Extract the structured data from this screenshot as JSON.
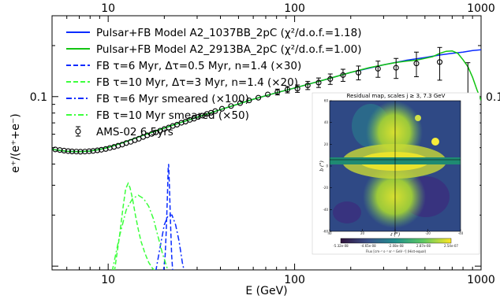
{
  "chart_data": {
    "type": "line",
    "xlabel": "E (GeV)",
    "ylabel": "e⁺/(e⁺+e⁻)",
    "xscale": "log",
    "yscale": "log",
    "xlim": [
      5,
      1000
    ],
    "ylim": [
      0.0095,
      0.3
    ],
    "x_tick_labels": [
      {
        "value": 10,
        "label": "10"
      },
      {
        "value": 100,
        "label": "100"
      },
      {
        "value": 1000,
        "label": "1000"
      }
    ],
    "y_tick_labels": [
      {
        "value": 0.1,
        "label": "0.1"
      }
    ],
    "grid": false,
    "legend_position": "top-left",
    "series": [
      {
        "name": "Pulsar+FB Model A2_1037BB_2pC (χ²/d.o.f.=1.18)",
        "color": "#0a2bff",
        "style": "solid",
        "x": [
          5,
          6,
          7,
          8,
          9,
          10,
          12,
          15,
          20,
          25,
          30,
          40,
          50,
          60,
          80,
          100,
          150,
          200,
          300,
          400,
          500,
          600,
          700,
          800,
          900,
          1000
        ],
        "y": [
          0.0488,
          0.0476,
          0.0473,
          0.0477,
          0.0488,
          0.0501,
          0.0535,
          0.0585,
          0.0652,
          0.0708,
          0.0756,
          0.0838,
          0.0905,
          0.0965,
          0.1055,
          0.1125,
          0.127,
          0.139,
          0.154,
          0.164,
          0.17,
          0.176,
          0.18,
          0.183,
          0.187,
          0.189
        ]
      },
      {
        "name": "Pulsar+FB Model A2_2913BA_2pC (χ²/d.o.f.=1.00)",
        "color": "#12c412",
        "style": "solid",
        "x": [
          5,
          6,
          7,
          8,
          9,
          10,
          12,
          15,
          20,
          25,
          30,
          40,
          50,
          60,
          80,
          100,
          150,
          200,
          250,
          300,
          350,
          400,
          450,
          500,
          550,
          600,
          650,
          700,
          750,
          800,
          850,
          900,
          950,
          1000
        ],
        "y": [
          0.0488,
          0.0476,
          0.0473,
          0.0477,
          0.0488,
          0.0501,
          0.0535,
          0.0585,
          0.0652,
          0.0708,
          0.0756,
          0.0838,
          0.0905,
          0.0965,
          0.1055,
          0.1125,
          0.127,
          0.139,
          0.148,
          0.154,
          0.159,
          0.162,
          0.164,
          0.168,
          0.172,
          0.18,
          0.185,
          0.186,
          0.18,
          0.165,
          0.15,
          0.13,
          0.11,
          0.095
        ]
      },
      {
        "name": "FB τ=6 Myr, Δτ=0.5 Myr, n=1.4 (×30)",
        "color": "#0a2bff",
        "style": "dashed",
        "x": [
          19.8,
          20.2,
          20.5,
          20.8,
          21.0,
          21.1,
          21.3,
          21.6,
          21.9,
          22.2
        ],
        "y": [
          0.0093,
          0.0115,
          0.0165,
          0.027,
          0.038,
          0.04,
          0.03,
          0.018,
          0.0115,
          0.0092
        ]
      },
      {
        "name": "FB τ=10 Myr, Δτ=3 Myr, n=1.4 (×20)",
        "color": "#3cff3c",
        "style": "dashed",
        "x": [
          10.8,
          11.5,
          12.0,
          12.4,
          12.8,
          13.1,
          13.5,
          14.0,
          14.5,
          15.0,
          15.8,
          16.5,
          17.3,
          18.0
        ],
        "y": [
          0.0093,
          0.015,
          0.022,
          0.0285,
          0.0308,
          0.029,
          0.025,
          0.02,
          0.0165,
          0.014,
          0.0118,
          0.0105,
          0.0097,
          0.0093
        ]
      },
      {
        "name": "FB τ=6 Myr smeared (×100)",
        "color": "#0a2bff",
        "style": "dashdot",
        "x": [
          18.0,
          19.0,
          20.0,
          21.0,
          22.0,
          23.0,
          24.0,
          25.0,
          25.6
        ],
        "y": [
          0.0093,
          0.013,
          0.0175,
          0.02,
          0.02,
          0.0175,
          0.014,
          0.0105,
          0.0093
        ]
      },
      {
        "name": "FB τ=10 Myr smeared (×50)",
        "color": "#3cff3c",
        "style": "dashdot",
        "x": [
          10.5,
          11.5,
          12.5,
          13.5,
          14.5,
          15.5,
          16.5,
          17.5,
          18.5,
          19.5,
          21.0
        ],
        "y": [
          0.0093,
          0.015,
          0.0215,
          0.025,
          0.0262,
          0.025,
          0.0225,
          0.019,
          0.015,
          0.012,
          0.0093
        ]
      },
      {
        "name": "AMS-02 6.5yrs",
        "color": "#000000",
        "style": "points",
        "points": [
          {
            "x": 5.2,
            "y": 0.0488,
            "err": 0.0004
          },
          {
            "x": 5.5,
            "y": 0.0484,
            "err": 0.0004
          },
          {
            "x": 5.8,
            "y": 0.048,
            "err": 0.0004
          },
          {
            "x": 6.1,
            "y": 0.0477,
            "err": 0.0004
          },
          {
            "x": 6.4,
            "y": 0.0475,
            "err": 0.0004
          },
          {
            "x": 6.75,
            "y": 0.0474,
            "err": 0.0004
          },
          {
            "x": 7.1,
            "y": 0.0473,
            "err": 0.0004
          },
          {
            "x": 7.5,
            "y": 0.0474,
            "err": 0.0004
          },
          {
            "x": 7.9,
            "y": 0.0476,
            "err": 0.0004
          },
          {
            "x": 8.3,
            "y": 0.0478,
            "err": 0.0004
          },
          {
            "x": 8.75,
            "y": 0.0482,
            "err": 0.0004
          },
          {
            "x": 9.2,
            "y": 0.0486,
            "err": 0.0004
          },
          {
            "x": 9.7,
            "y": 0.0491,
            "err": 0.0004
          },
          {
            "x": 10.2,
            "y": 0.0498,
            "err": 0.0005
          },
          {
            "x": 10.75,
            "y": 0.0505,
            "err": 0.0005
          },
          {
            "x": 11.3,
            "y": 0.0513,
            "err": 0.0005
          },
          {
            "x": 11.9,
            "y": 0.0521,
            "err": 0.0005
          },
          {
            "x": 12.5,
            "y": 0.0532,
            "err": 0.0006
          },
          {
            "x": 13.2,
            "y": 0.0541,
            "err": 0.0006
          },
          {
            "x": 13.9,
            "y": 0.0553,
            "err": 0.0006
          },
          {
            "x": 14.6,
            "y": 0.0564,
            "err": 0.0007
          },
          {
            "x": 15.4,
            "y": 0.0578,
            "err": 0.0007
          },
          {
            "x": 16.2,
            "y": 0.0591,
            "err": 0.0008
          },
          {
            "x": 17.1,
            "y": 0.0602,
            "err": 0.0008
          },
          {
            "x": 18.0,
            "y": 0.0615,
            "err": 0.0009
          },
          {
            "x": 19.0,
            "y": 0.063,
            "err": 0.0009
          },
          {
            "x": 20.0,
            "y": 0.0644,
            "err": 0.001
          },
          {
            "x": 21.1,
            "y": 0.0657,
            "err": 0.0011
          },
          {
            "x": 22.2,
            "y": 0.0671,
            "err": 0.0012
          },
          {
            "x": 23.4,
            "y": 0.0683,
            "err": 0.0012
          },
          {
            "x": 24.7,
            "y": 0.0701,
            "err": 0.0013
          },
          {
            "x": 26.0,
            "y": 0.0712,
            "err": 0.0014
          },
          {
            "x": 27.4,
            "y": 0.0729,
            "err": 0.0015
          },
          {
            "x": 28.9,
            "y": 0.0741,
            "err": 0.0016
          },
          {
            "x": 30.4,
            "y": 0.0759,
            "err": 0.0017
          },
          {
            "x": 32.1,
            "y": 0.0772,
            "err": 0.0018
          },
          {
            "x": 33.8,
            "y": 0.079,
            "err": 0.0019
          },
          {
            "x": 35.6,
            "y": 0.0803,
            "err": 0.0021
          },
          {
            "x": 37.5,
            "y": 0.0821,
            "err": 0.0022
          },
          {
            "x": 40.8,
            "y": 0.0848,
            "err": 0.0022
          },
          {
            "x": 45.6,
            "y": 0.088,
            "err": 0.0023
          },
          {
            "x": 51.0,
            "y": 0.0915,
            "err": 0.0025
          },
          {
            "x": 57.0,
            "y": 0.095,
            "err": 0.0028
          },
          {
            "x": 63.9,
            "y": 0.0985,
            "err": 0.0032
          },
          {
            "x": 71.8,
            "y": 0.103,
            "err": 0.0036
          },
          {
            "x": 80.9,
            "y": 0.1065,
            "err": 0.0042
          },
          {
            "x": 91.5,
            "y": 0.11,
            "err": 0.0048
          },
          {
            "x": 103.5,
            "y": 0.1115,
            "err": 0.0056
          },
          {
            "x": 117.6,
            "y": 0.1165,
            "err": 0.0065
          },
          {
            "x": 134.5,
            "y": 0.121,
            "err": 0.0078
          },
          {
            "x": 155.3,
            "y": 0.127,
            "err": 0.009
          },
          {
            "x": 181.8,
            "y": 0.134,
            "err": 0.011
          },
          {
            "x": 220.0,
            "y": 0.1385,
            "err": 0.013
          },
          {
            "x": 280.0,
            "y": 0.146,
            "err": 0.016
          },
          {
            "x": 350.0,
            "y": 0.148,
            "err": 0.02
          },
          {
            "x": 450.0,
            "y": 0.157,
            "err": 0.026
          },
          {
            "x": 600.0,
            "y": 0.16,
            "err": 0.035
          },
          {
            "x": 850.0,
            "y": 0.0985,
            "err_plus": 0.06,
            "err_minus": 0.058
          }
        ]
      }
    ],
    "inset": {
      "title": "Residual map, scales j ≥ 3, 7.3 GeV",
      "xlabel": "ℓ (°)",
      "ylabel": "b (°)",
      "colorbar_label": "Flux [cm⁻² s⁻¹ sr⁻¹ GeV⁻¹] (Hist-equal)",
      "colorbar_ticks": [
        "-5.32e-08",
        "-4.65e-08",
        "-2.08e-08",
        "2.87e-08",
        "2.54e-07"
      ],
      "x_ticks": [
        "40",
        "20",
        "0",
        "-20",
        "-40"
      ],
      "y_ticks": [
        "60",
        "40",
        "20",
        "0",
        "-20",
        "-40",
        "-60"
      ],
      "colors": {
        "low": "#3b0f70",
        "mid": "#21918c",
        "high": "#fde725"
      }
    }
  }
}
